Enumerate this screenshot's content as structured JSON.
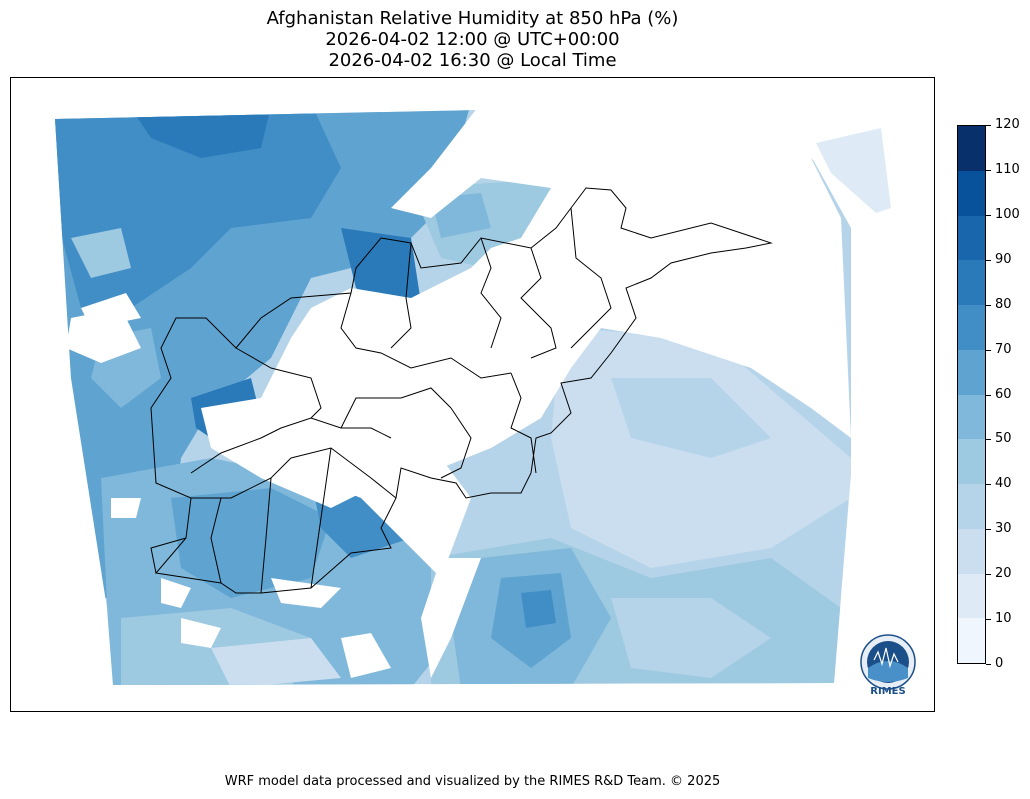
{
  "title": {
    "line1": "Afghanistan Relative Humidity at 850 hPa (%)",
    "line2": "2026-04-02 12:00 @ UTC+00:00",
    "line3": "2026-04-02 16:30 @ Local Time"
  },
  "colorbar": {
    "ticks": [
      "0",
      "10",
      "20",
      "30",
      "40",
      "50",
      "60",
      "70",
      "80",
      "90",
      "100",
      "110",
      "120"
    ],
    "colors": [
      "#f0f6fd",
      "#deebf7",
      "#cadef0",
      "#b6d4e9",
      "#9dc9e1",
      "#7fb8da",
      "#5fa3d0",
      "#418ec6",
      "#2a7aba",
      "#1966ad",
      "#08529c",
      "#08306b"
    ]
  },
  "logo": {
    "name": "RIMES"
  },
  "footer": {
    "credit": "WRF model data processed and visualized by the RIMES R&D Team. © 2025"
  }
}
